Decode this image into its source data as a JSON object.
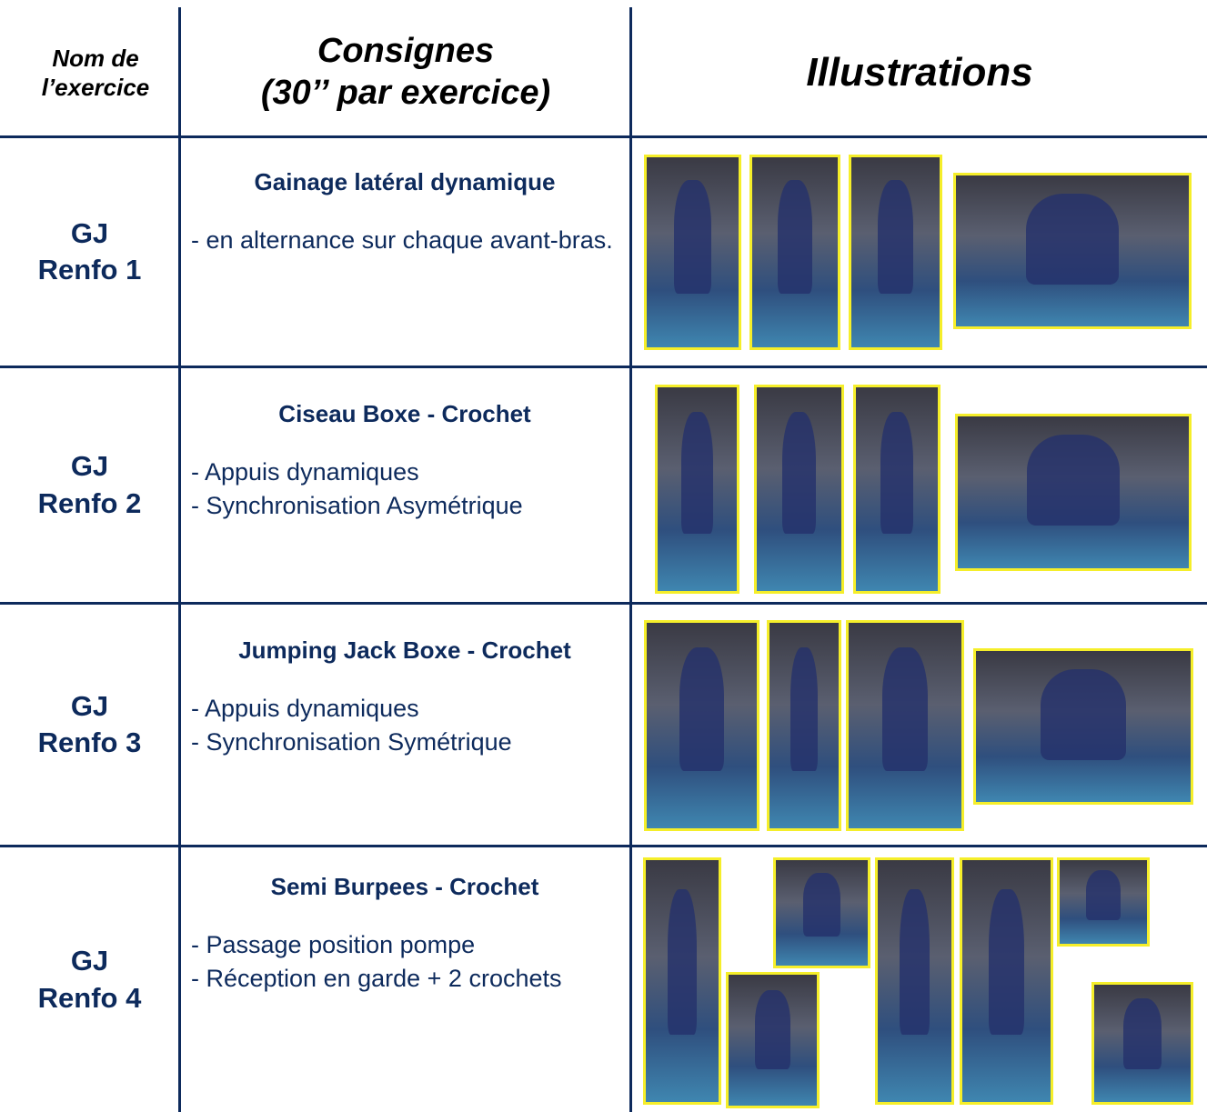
{
  "header": {
    "name": [
      "Nom de",
      "l’exercice"
    ],
    "instructions": [
      "Consignes",
      "(30’’ par exercice)"
    ],
    "illustrations": "Illustrations"
  },
  "rows": [
    {
      "name": [
        "GJ",
        "Renfo 1"
      ],
      "title": "Gainage latéral dynamique",
      "instructions": [
        "- en alternance sur chaque avant-bras."
      ]
    },
    {
      "name": [
        "GJ",
        "Renfo 2"
      ],
      "title": "Ciseau Boxe - Crochet",
      "instructions": [
        "- Appuis dynamiques",
        "- Synchronisation Asymétrique"
      ]
    },
    {
      "name": [
        "GJ",
        "Renfo 3"
      ],
      "title": "Jumping Jack Boxe - Crochet",
      "instructions": [
        "- Appuis dynamiques",
        "- Synchronisation Symétrique"
      ]
    },
    {
      "name": [
        "GJ",
        "Renfo 4"
      ],
      "title": "Semi Burpees - Crochet",
      "instructions": [
        "- Passage position pompe",
        "- Réception en garde + 2 crochets"
      ]
    }
  ]
}
